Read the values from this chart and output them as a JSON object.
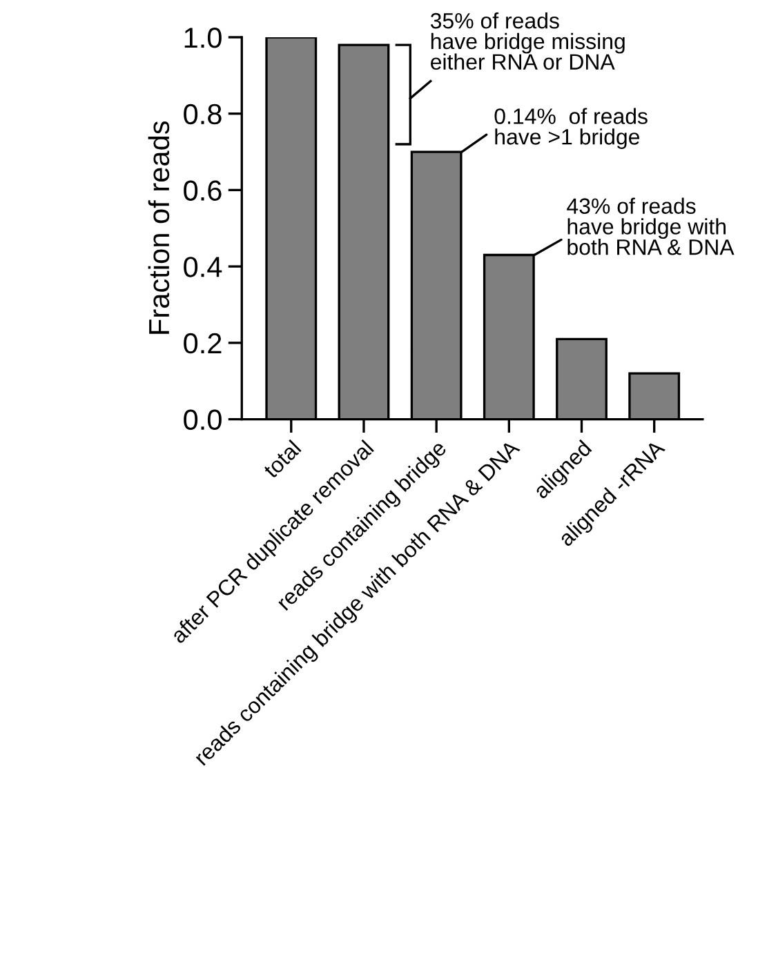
{
  "chart_data": {
    "type": "bar",
    "ylabel": "Fraction of reads",
    "categories": [
      "total",
      "after PCR duplicate removal",
      "reads containing bridge",
      "reads containing bridge with both RNA & DNA",
      "aligned",
      "aligned -rRNA"
    ],
    "values": [
      1.0,
      0.98,
      0.7,
      0.43,
      0.21,
      0.12
    ],
    "color": "#7f7f7f",
    "ylim": [
      0,
      1.0
    ],
    "yticks": [
      {
        "value": 0,
        "label": "0.0"
      },
      {
        "value": 0.2,
        "label": "0.2"
      },
      {
        "value": 0.4,
        "label": "0.4"
      },
      {
        "value": 0.6,
        "label": "0.6"
      },
      {
        "value": 0.8,
        "label": "0.8"
      },
      {
        "value": 1.0,
        "label": "1.0"
      }
    ],
    "grid": false,
    "annotations": [
      "35% of reads\nhave bridge missing\neither RNA or DNA",
      {
        "text": "0.14%  of reads\nhave >1 bridge",
        "x": "reads containing bridge",
        "y": 0.7
      },
      {
        "text": "43% of reads\nhave bridge with\nboth RNA & DNA",
        "x": "reads containing bridge with both RNA & DNA",
        "y": 0.43
      }
    ]
  }
}
